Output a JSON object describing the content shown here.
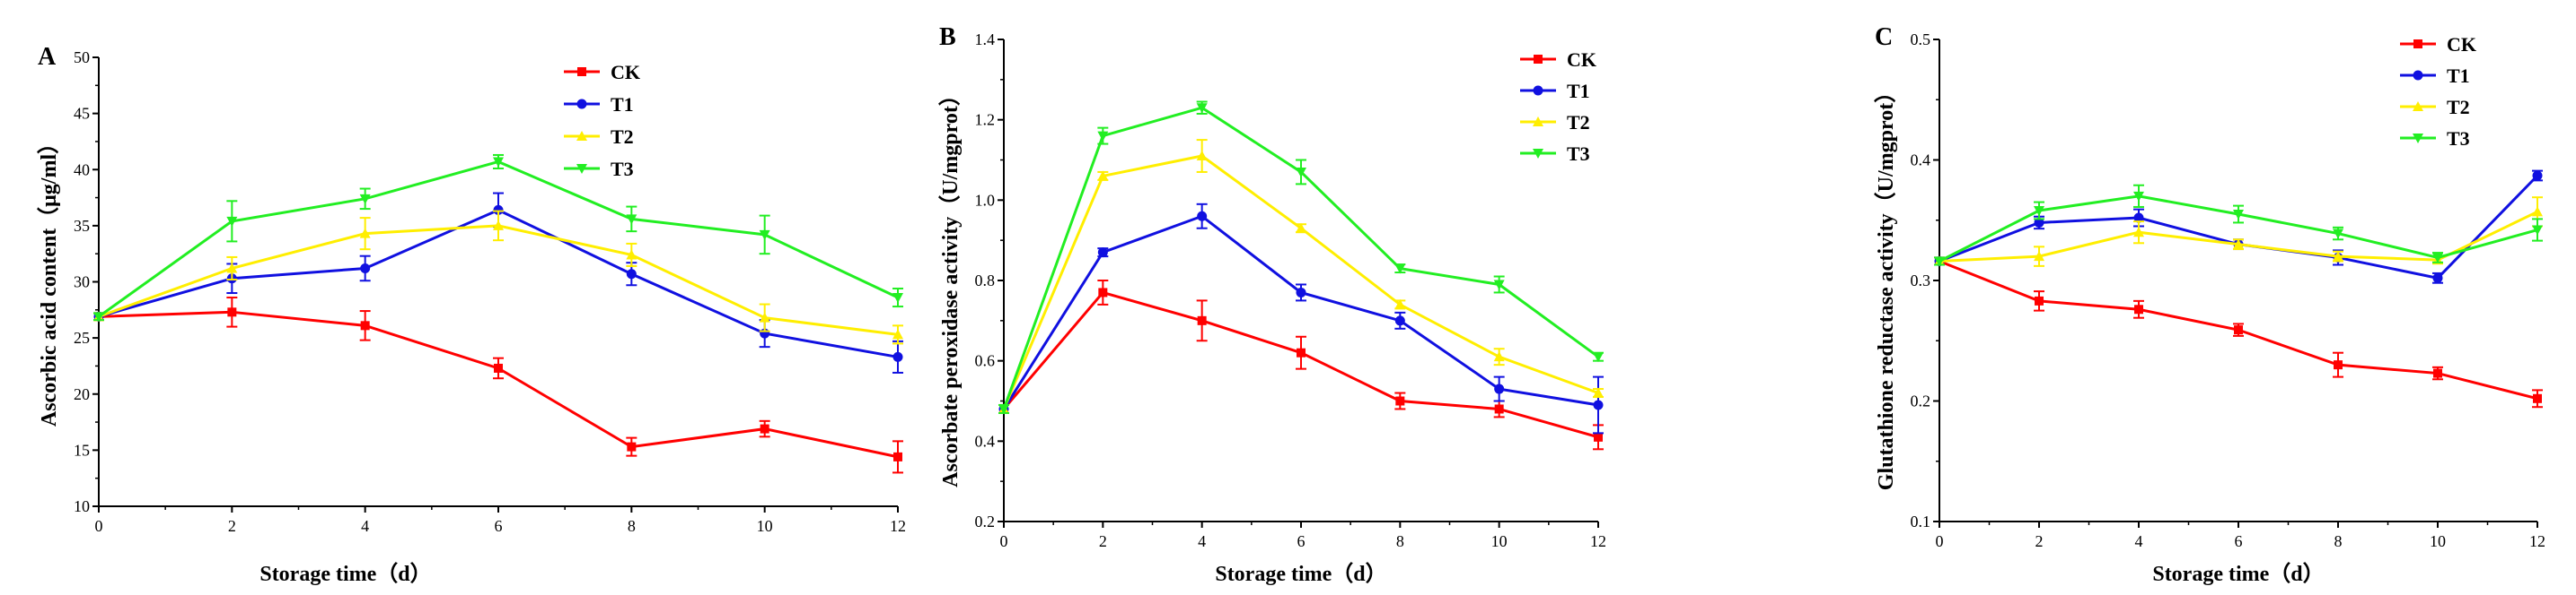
{
  "colors": {
    "CK": "#ff0000",
    "T1": "#1010e0",
    "T2": "#ffee00",
    "T3": "#22ee22"
  },
  "chart_data": [
    {
      "type": "line",
      "panel": "A",
      "title": "",
      "xlabel": "Storage time（d）",
      "ylabel": "Ascorbic acid content（μg/ml）",
      "x": [
        0,
        2,
        4,
        6,
        8,
        10,
        12
      ],
      "xticks": [
        "0",
        "2",
        "4",
        "6",
        "8",
        "10",
        "12"
      ],
      "xlim": [
        0,
        12
      ],
      "ylim": [
        10,
        50
      ],
      "yticks": [
        "10",
        "15",
        "20",
        "25",
        "30",
        "35",
        "40",
        "45",
        "50"
      ],
      "legend_position": "top-right",
      "series": [
        {
          "name": "CK",
          "marker": "square",
          "values": [
            26.9,
            27.3,
            26.1,
            22.3,
            15.3,
            16.9,
            14.4
          ],
          "errors": [
            0.3,
            1.3,
            1.3,
            0.9,
            0.8,
            0.7,
            1.4
          ]
        },
        {
          "name": "T1",
          "marker": "circle",
          "values": [
            26.9,
            30.3,
            31.2,
            36.4,
            30.7,
            25.4,
            23.3
          ],
          "errors": [
            0.3,
            1.3,
            1.1,
            1.5,
            1.0,
            1.2,
            1.4
          ]
        },
        {
          "name": "T2",
          "marker": "triangle-up",
          "values": [
            26.9,
            31.2,
            34.3,
            35.0,
            32.4,
            26.8,
            25.3
          ],
          "errors": [
            0.3,
            1.0,
            1.4,
            1.3,
            1.0,
            1.2,
            0.8
          ]
        },
        {
          "name": "T3",
          "marker": "triangle-down",
          "values": [
            26.9,
            35.4,
            37.4,
            40.7,
            35.6,
            34.2,
            28.6
          ],
          "errors": [
            0.3,
            1.8,
            0.9,
            0.6,
            1.1,
            1.7,
            0.8
          ]
        }
      ]
    },
    {
      "type": "line",
      "panel": "B",
      "title": "",
      "xlabel": "Storage time（d）",
      "ylabel": "Ascorbate peroxidase activity（U/mgprot）",
      "x": [
        0,
        2,
        4,
        6,
        8,
        10,
        12
      ],
      "xticks": [
        "0",
        "2",
        "4",
        "6",
        "8",
        "10",
        "12"
      ],
      "xlim": [
        0,
        12
      ],
      "ylim": [
        0.2,
        1.4
      ],
      "yticks": [
        "0.2",
        "0.4",
        "0.6",
        "0.8",
        "1.0",
        "1.2",
        "1.4"
      ],
      "legend_position": "top-right",
      "series": [
        {
          "name": "CK",
          "marker": "square",
          "values": [
            0.48,
            0.77,
            0.7,
            0.62,
            0.5,
            0.48,
            0.41
          ],
          "errors": [
            0.01,
            0.03,
            0.05,
            0.04,
            0.02,
            0.02,
            0.03
          ]
        },
        {
          "name": "T1",
          "marker": "circle",
          "values": [
            0.48,
            0.87,
            0.96,
            0.77,
            0.7,
            0.53,
            0.49
          ],
          "errors": [
            0.01,
            0.01,
            0.03,
            0.02,
            0.02,
            0.03,
            0.07
          ]
        },
        {
          "name": "T2",
          "marker": "triangle-up",
          "values": [
            0.48,
            1.06,
            1.11,
            0.93,
            0.74,
            0.61,
            0.52
          ],
          "errors": [
            0.01,
            0.01,
            0.04,
            0.01,
            0.01,
            0.02,
            0.01
          ]
        },
        {
          "name": "T3",
          "marker": "triangle-down",
          "values": [
            0.48,
            1.16,
            1.23,
            1.07,
            0.83,
            0.79,
            0.61
          ],
          "errors": [
            0.01,
            0.02,
            0.015,
            0.03,
            0.01,
            0.02,
            0.01
          ]
        }
      ]
    },
    {
      "type": "line",
      "panel": "C",
      "title": "",
      "xlabel": "Storage time（d）",
      "ylabel": "Glutathione reductase activity（U/mgprot）",
      "x": [
        0,
        2,
        4,
        6,
        8,
        10,
        12
      ],
      "xticks": [
        "0",
        "2",
        "4",
        "6",
        "8",
        "10",
        "12"
      ],
      "xlim": [
        0,
        12
      ],
      "ylim": [
        0.1,
        0.5
      ],
      "yticks": [
        "0.1",
        "0.2",
        "0.3",
        "0.4",
        "0.5"
      ],
      "legend_position": "top-right",
      "series": [
        {
          "name": "CK",
          "marker": "square",
          "values": [
            0.316,
            0.283,
            0.276,
            0.259,
            0.23,
            0.223,
            0.202
          ],
          "errors": [
            0.003,
            0.008,
            0.007,
            0.005,
            0.01,
            0.005,
            0.007
          ]
        },
        {
          "name": "T1",
          "marker": "circle",
          "values": [
            0.316,
            0.348,
            0.352,
            0.33,
            0.319,
            0.302,
            0.387
          ],
          "errors": [
            0.003,
            0.005,
            0.007,
            0.004,
            0.006,
            0.004,
            0.004
          ]
        },
        {
          "name": "T2",
          "marker": "triangle-up",
          "values": [
            0.316,
            0.32,
            0.34,
            0.33,
            0.32,
            0.317,
            0.357
          ],
          "errors": [
            0.003,
            0.008,
            0.009,
            0.004,
            0.004,
            0.003,
            0.012
          ]
        },
        {
          "name": "T3",
          "marker": "triangle-down",
          "values": [
            0.316,
            0.358,
            0.37,
            0.355,
            0.339,
            0.319,
            0.342
          ],
          "errors": [
            0.003,
            0.007,
            0.009,
            0.007,
            0.005,
            0.004,
            0.009
          ]
        }
      ]
    }
  ]
}
